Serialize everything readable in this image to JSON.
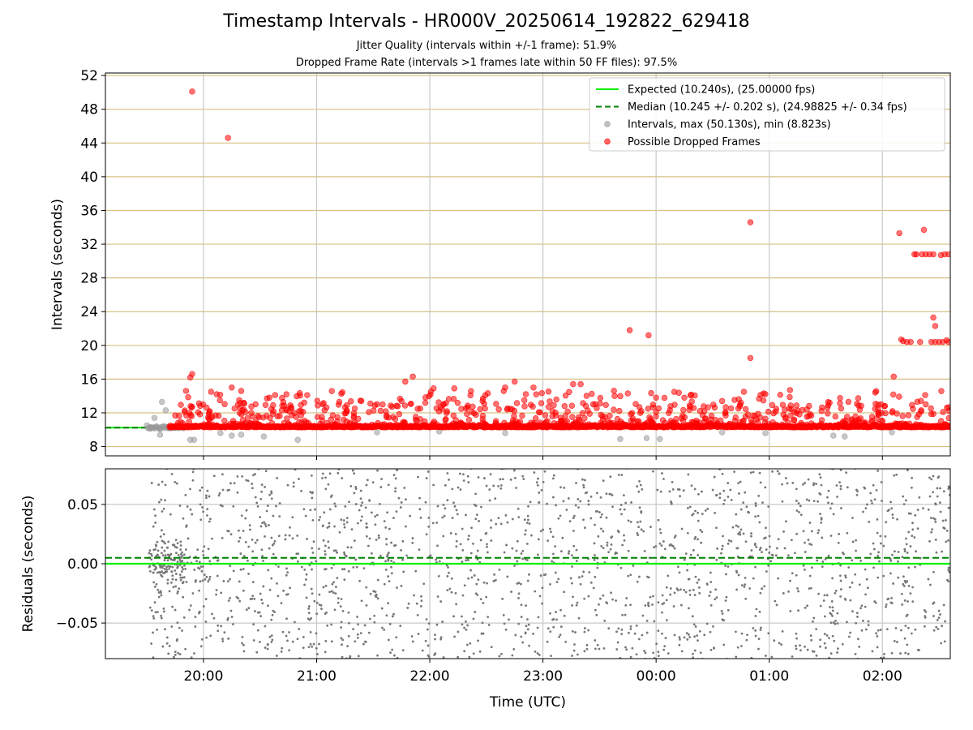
{
  "figure": {
    "title": "Timestamp Intervals - HR000V_20250614_192822_629418",
    "subtitle_jitter": "Jitter Quality (intervals within +/-1 frame): 51.9%",
    "subtitle_dropped": "Dropped Frame Rate (intervals >1 frames late within 50 FF files): 97.5%"
  },
  "colors": {
    "expected": "#00ee00",
    "median": "#008000",
    "intervals": "#999999",
    "dropped": "#ff0000",
    "hgrid": "#d8c080",
    "vgrid": "#c8c8c8",
    "residual_points": "#777777"
  },
  "chart_data": [
    {
      "type": "scatter",
      "id": "intervals",
      "ylabel": "Intervals (seconds)",
      "xlabel": "",
      "xlim": [
        "19:08",
        "02:36"
      ],
      "ylim": [
        6.9,
        52.3
      ],
      "yticks": [
        "8",
        "12",
        "16",
        "20",
        "24",
        "28",
        "32",
        "36",
        "40",
        "44",
        "48",
        "52"
      ],
      "grid": true,
      "legend_position": "top-right",
      "expected_interval": 10.24,
      "median_interval": 10.245,
      "legend": [
        {
          "label": "Expected (10.240s), (25.00000 fps)",
          "style": "solid-line",
          "color": "#00ee00"
        },
        {
          "label": "Median (10.245 +/- 0.202 s), (24.98825 +/- 0.34 fps)",
          "style": "dashed-line",
          "color": "#008000"
        },
        {
          "label": "Intervals, max (50.130s), min (8.823s)",
          "style": "marker",
          "color": "#999999"
        },
        {
          "label": "Possible Dropped Frames",
          "style": "marker",
          "color": "#ff0000"
        }
      ],
      "dropped_outliers": [
        {
          "x": "19:54",
          "y": 50.1
        },
        {
          "x": "20:13",
          "y": 44.6
        },
        {
          "x": "19:53",
          "y": 16.2
        },
        {
          "x": "19:54",
          "y": 16.6
        },
        {
          "x": "19:50",
          "y": 12.1
        },
        {
          "x": "20:04",
          "y": 14.5
        },
        {
          "x": "20:07",
          "y": 14.2
        },
        {
          "x": "20:15",
          "y": 15.0
        },
        {
          "x": "20:20",
          "y": 14.6
        },
        {
          "x": "20:35",
          "y": 13.8
        },
        {
          "x": "20:44",
          "y": 14.2
        },
        {
          "x": "20:55",
          "y": 14.1
        },
        {
          "x": "21:12",
          "y": 13.3
        },
        {
          "x": "21:35",
          "y": 13.0
        },
        {
          "x": "21:45",
          "y": 13.4
        },
        {
          "x": "21:47",
          "y": 15.7
        },
        {
          "x": "21:51",
          "y": 16.3
        },
        {
          "x": "22:02",
          "y": 14.9
        },
        {
          "x": "22:13",
          "y": 14.9
        },
        {
          "x": "22:28",
          "y": 13.4
        },
        {
          "x": "22:40",
          "y": 15.0
        },
        {
          "x": "22:45",
          "y": 15.7
        },
        {
          "x": "22:55",
          "y": 15.0
        },
        {
          "x": "23:03",
          "y": 12.7
        },
        {
          "x": "23:16",
          "y": 15.4
        },
        {
          "x": "23:20",
          "y": 15.4
        },
        {
          "x": "23:38",
          "y": 14.0
        },
        {
          "x": "23:45",
          "y": 14.3
        },
        {
          "x": "23:46",
          "y": 21.8
        },
        {
          "x": "23:56",
          "y": 21.2
        },
        {
          "x": "00:00",
          "y": 13.8
        },
        {
          "x": "00:15",
          "y": 13.8
        },
        {
          "x": "00:35",
          "y": 13.4
        },
        {
          "x": "00:45",
          "y": 13.2
        },
        {
          "x": "00:50",
          "y": 34.6
        },
        {
          "x": "00:50",
          "y": 18.5
        },
        {
          "x": "00:57",
          "y": 14.3
        },
        {
          "x": "01:11",
          "y": 14.7
        },
        {
          "x": "01:32",
          "y": 13.2
        },
        {
          "x": "01:42",
          "y": 13.3
        },
        {
          "x": "02:06",
          "y": 16.3
        },
        {
          "x": "02:09",
          "y": 33.3
        },
        {
          "x": "02:10",
          "y": 20.7
        },
        {
          "x": "02:11",
          "y": 20.5
        },
        {
          "x": "02:13",
          "y": 20.4
        },
        {
          "x": "02:15",
          "y": 20.4
        },
        {
          "x": "02:17",
          "y": 30.8
        },
        {
          "x": "02:18",
          "y": 30.8
        },
        {
          "x": "02:20",
          "y": 20.4
        },
        {
          "x": "02:21",
          "y": 30.8
        },
        {
          "x": "02:22",
          "y": 33.7
        },
        {
          "x": "02:23",
          "y": 30.8
        },
        {
          "x": "02:25",
          "y": 30.8
        },
        {
          "x": "02:26",
          "y": 20.4
        },
        {
          "x": "02:27",
          "y": 30.8
        },
        {
          "x": "02:27",
          "y": 23.3
        },
        {
          "x": "02:28",
          "y": 22.3
        },
        {
          "x": "02:28",
          "y": 20.4
        },
        {
          "x": "02:30",
          "y": 20.4
        },
        {
          "x": "02:31",
          "y": 30.7
        },
        {
          "x": "02:32",
          "y": 20.4
        },
        {
          "x": "02:33",
          "y": 30.8
        },
        {
          "x": "02:34",
          "y": 20.6
        },
        {
          "x": "02:35",
          "y": 30.8
        },
        {
          "x": "02:35",
          "y": 20.4
        },
        {
          "x": "02:23",
          "y": 13.0
        }
      ],
      "normal_intervals_low": [
        {
          "x": "19:32",
          "y": 10.3
        },
        {
          "x": "19:34",
          "y": 11.4
        },
        {
          "x": "19:37",
          "y": 9.4
        },
        {
          "x": "19:38",
          "y": 13.3
        },
        {
          "x": "19:40",
          "y": 12.3
        },
        {
          "x": "19:53",
          "y": 8.8
        },
        {
          "x": "19:55",
          "y": 8.8
        },
        {
          "x": "20:09",
          "y": 9.6
        },
        {
          "x": "20:15",
          "y": 9.3
        },
        {
          "x": "20:20",
          "y": 9.4
        },
        {
          "x": "20:32",
          "y": 9.2
        },
        {
          "x": "20:50",
          "y": 8.8
        },
        {
          "x": "21:32",
          "y": 9.7
        },
        {
          "x": "22:05",
          "y": 9.8
        },
        {
          "x": "22:40",
          "y": 9.6
        },
        {
          "x": "23:41",
          "y": 8.9
        },
        {
          "x": "23:55",
          "y": 9.0
        },
        {
          "x": "00:02",
          "y": 8.9
        },
        {
          "x": "00:35",
          "y": 9.7
        },
        {
          "x": "00:58",
          "y": 9.6
        },
        {
          "x": "01:34",
          "y": 9.3
        },
        {
          "x": "01:40",
          "y": 9.2
        },
        {
          "x": "02:05",
          "y": 9.7
        }
      ]
    },
    {
      "type": "scatter",
      "id": "residuals",
      "ylabel": "Residuals (seconds)",
      "xlabel": "Time (UTC)",
      "xlim": [
        "19:08",
        "02:36"
      ],
      "ylim": [
        -0.08,
        0.08
      ],
      "yticks": [
        "0.05",
        "0.00",
        "−0.05"
      ],
      "xticks": [
        "20:00",
        "21:00",
        "22:00",
        "23:00",
        "00:00",
        "01:00",
        "02:00"
      ],
      "grid": true,
      "expected_residual": 0.0,
      "median_residual": 0.005,
      "spread": "points scattered roughly uniformly between -0.08 and 0.08 across the full time range; tighter cluster near 0.00 between 19:30 and 19:50"
    }
  ]
}
